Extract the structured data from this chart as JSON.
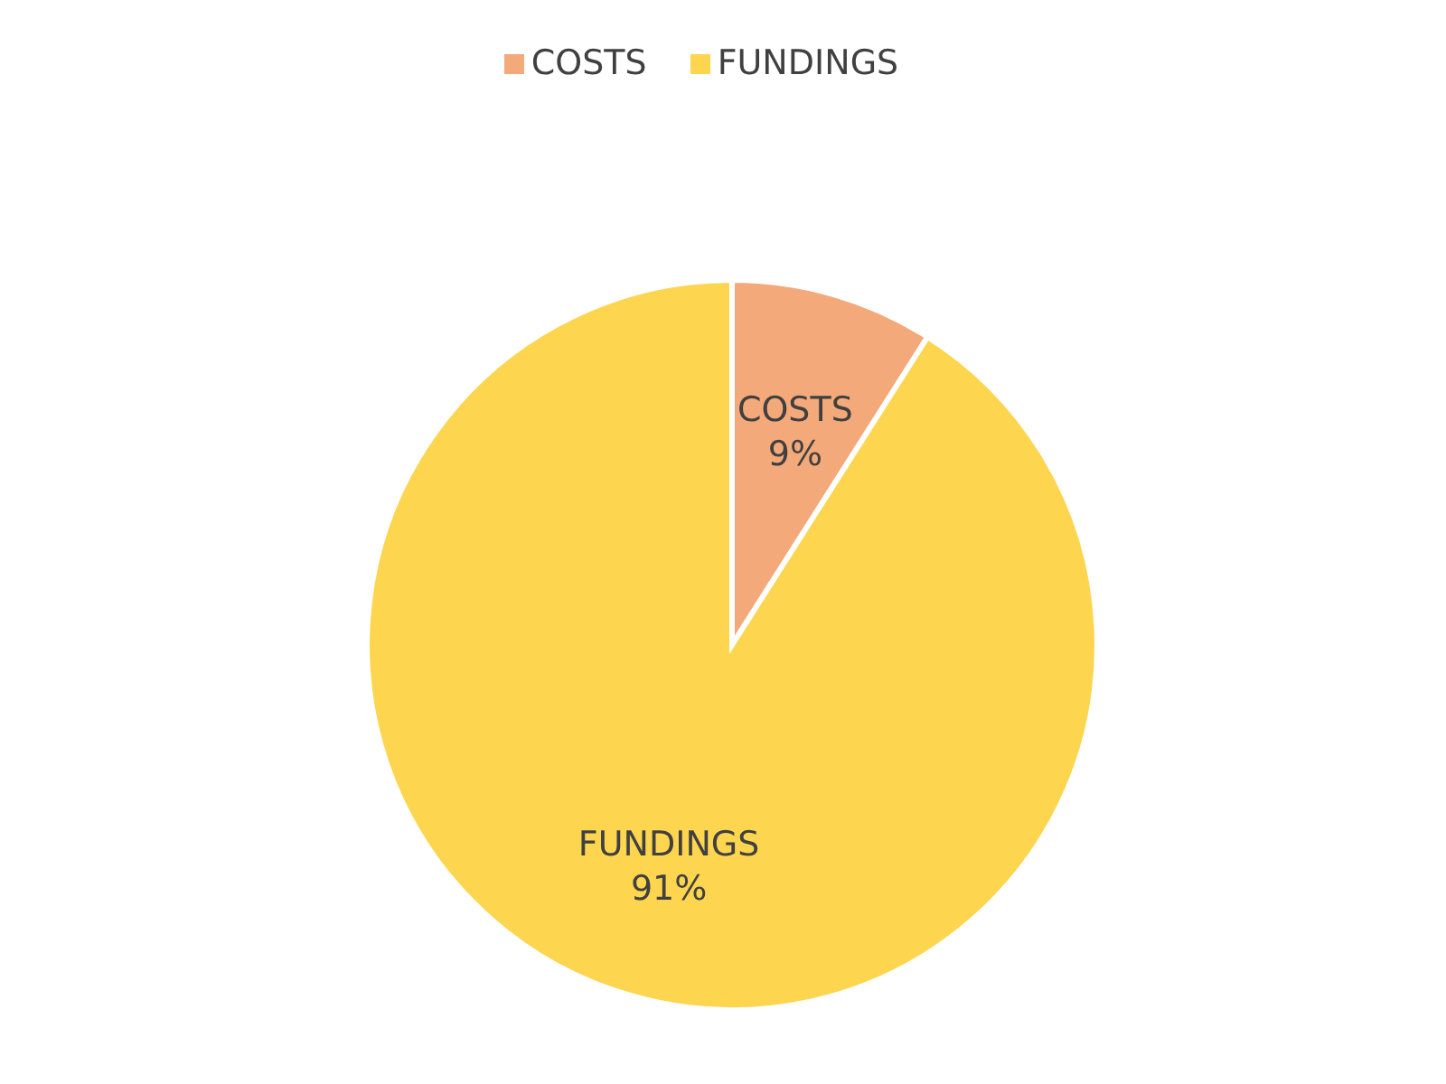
{
  "chart_data": {
    "type": "pie",
    "categories": [
      "COSTS",
      "FUNDINGS"
    ],
    "values": [
      9,
      91
    ],
    "colors": [
      "#f4a97a",
      "#fdd54f"
    ],
    "value_labels": [
      "9%",
      "91%"
    ],
    "legend": "top"
  }
}
